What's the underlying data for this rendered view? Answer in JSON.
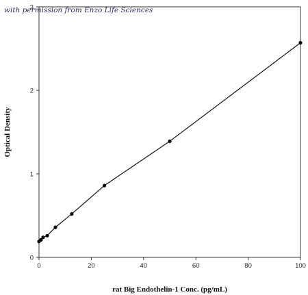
{
  "watermark": "with permission from Enzo Life Sciences",
  "chart_data": {
    "type": "line",
    "xlabel": "rat Big Endothelin-1 Conc. (pg/mL)",
    "ylabel": "Optical Density",
    "xlim": [
      0,
      100
    ],
    "ylim": [
      0,
      3
    ],
    "xticks": [
      0,
      20,
      40,
      60,
      80,
      100
    ],
    "yticks": [
      0,
      1,
      2,
      3
    ],
    "grid": false,
    "legend": "none",
    "series": [
      {
        "x": [
          0,
          0.78,
          1.56,
          3.13,
          6.25,
          12.5,
          25,
          50,
          100
        ],
        "y": [
          0.19,
          0.21,
          0.24,
          0.26,
          0.36,
          0.52,
          0.86,
          1.39,
          2.57
        ]
      }
    ],
    "colors": {
      "line": "#111111",
      "marker": "#000000",
      "axis": "#333333"
    }
  }
}
